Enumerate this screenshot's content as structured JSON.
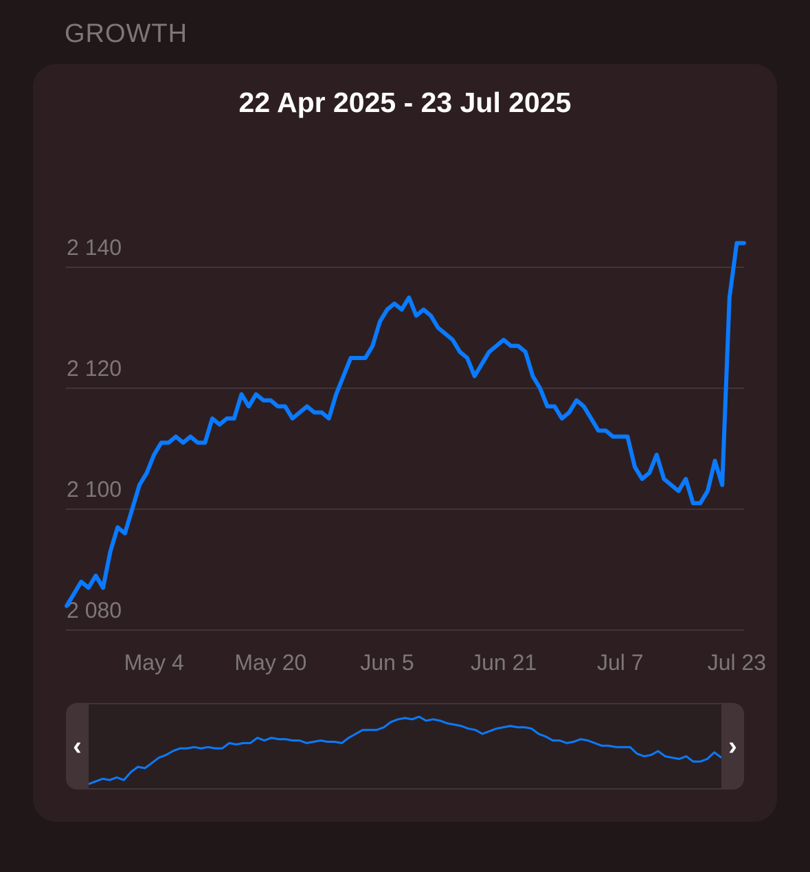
{
  "section_title": "GROWTH",
  "range_title": "22 Apr 2025 - 23 Jul 2025",
  "colors": {
    "line": "#0a7aff",
    "background": "#1f1718",
    "card": "#2d1f21"
  },
  "navigator": {
    "left_icon": "chevron-left-icon",
    "right_icon": "chevron-right-icon"
  },
  "chart_data": {
    "type": "line",
    "title": "22 Apr 2025 - 23 Jul 2025",
    "xlabel": "",
    "ylabel": "",
    "x_range": [
      "2025-04-22",
      "2025-07-24"
    ],
    "ylim": [
      2080,
      2148
    ],
    "y_ticks": [
      2080,
      2100,
      2120,
      2140
    ],
    "y_tick_labels": [
      "2 080",
      "2 100",
      "2 120",
      "2 140"
    ],
    "x_ticks": [
      {
        "date": "2025-05-04",
        "label": "May 4"
      },
      {
        "date": "2025-05-20",
        "label": "May 20"
      },
      {
        "date": "2025-06-05",
        "label": "Jun 5"
      },
      {
        "date": "2025-06-21",
        "label": "Jun 21"
      },
      {
        "date": "2025-07-07",
        "label": "Jul 7"
      },
      {
        "date": "2025-07-23",
        "label": "Jul 23"
      }
    ],
    "grid": true,
    "series": [
      {
        "x": [
          "2025-04-22",
          "2025-04-23",
          "2025-04-24",
          "2025-04-25",
          "2025-04-26",
          "2025-04-27",
          "2025-04-28",
          "2025-04-29",
          "2025-04-30",
          "2025-05-01",
          "2025-05-02",
          "2025-05-03",
          "2025-05-04",
          "2025-05-05",
          "2025-05-06",
          "2025-05-07",
          "2025-05-08",
          "2025-05-09",
          "2025-05-10",
          "2025-05-11",
          "2025-05-12",
          "2025-05-13",
          "2025-05-14",
          "2025-05-15",
          "2025-05-16",
          "2025-05-17",
          "2025-05-18",
          "2025-05-19",
          "2025-05-20",
          "2025-05-21",
          "2025-05-22",
          "2025-05-23",
          "2025-05-24",
          "2025-05-25",
          "2025-05-26",
          "2025-05-27",
          "2025-05-28",
          "2025-05-29",
          "2025-05-30",
          "2025-05-31",
          "2025-06-01",
          "2025-06-02",
          "2025-06-03",
          "2025-06-04",
          "2025-06-05",
          "2025-06-06",
          "2025-06-07",
          "2025-06-08",
          "2025-06-09",
          "2025-06-10",
          "2025-06-11",
          "2025-06-12",
          "2025-06-13",
          "2025-06-14",
          "2025-06-15",
          "2025-06-16",
          "2025-06-17",
          "2025-06-18",
          "2025-06-19",
          "2025-06-20",
          "2025-06-21",
          "2025-06-22",
          "2025-06-23",
          "2025-06-24",
          "2025-06-25",
          "2025-06-26",
          "2025-06-27",
          "2025-06-28",
          "2025-06-29",
          "2025-06-30",
          "2025-07-01",
          "2025-07-02",
          "2025-07-03",
          "2025-07-04",
          "2025-07-05",
          "2025-07-06",
          "2025-07-07",
          "2025-07-08",
          "2025-07-09",
          "2025-07-10",
          "2025-07-11",
          "2025-07-12",
          "2025-07-13",
          "2025-07-14",
          "2025-07-15",
          "2025-07-16",
          "2025-07-17",
          "2025-07-18",
          "2025-07-19",
          "2025-07-20",
          "2025-07-21",
          "2025-07-22",
          "2025-07-23",
          "2025-07-24"
        ],
        "values": [
          2084,
          2086,
          2088,
          2087,
          2089,
          2087,
          2093,
          2097,
          2096,
          2100,
          2104,
          2106,
          2109,
          2111,
          2111,
          2112,
          2111,
          2112,
          2111,
          2111,
          2115,
          2114,
          2115,
          2115,
          2119,
          2117,
          2119,
          2118,
          2118,
          2117,
          2117,
          2115,
          2116,
          2117,
          2116,
          2116,
          2115,
          2119,
          2122,
          2125,
          2125,
          2125,
          2127,
          2131,
          2133,
          2134,
          2133,
          2135,
          2132,
          2133,
          2132,
          2130,
          2129,
          2128,
          2126,
          2125,
          2122,
          2124,
          2126,
          2127,
          2128,
          2127,
          2127,
          2126,
          2122,
          2120,
          2117,
          2117,
          2115,
          2116,
          2118,
          2117,
          2115,
          2113,
          2113,
          2112,
          2112,
          2112,
          2107,
          2105,
          2106,
          2109,
          2105,
          2104,
          2103,
          2105,
          2101,
          2101,
          2103,
          2108,
          2104,
          2135,
          2144,
          2144
        ]
      }
    ]
  }
}
